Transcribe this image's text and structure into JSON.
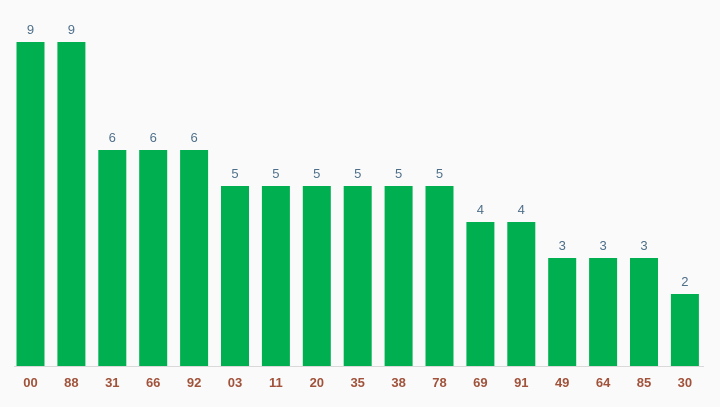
{
  "chart_data": {
    "type": "bar",
    "categories": [
      "00",
      "88",
      "31",
      "66",
      "92",
      "03",
      "11",
      "20",
      "35",
      "38",
      "78",
      "69",
      "91",
      "49",
      "64",
      "85",
      "30"
    ],
    "values": [
      9,
      9,
      6,
      6,
      6,
      5,
      5,
      5,
      5,
      5,
      5,
      4,
      4,
      3,
      3,
      3,
      2
    ],
    "ylim": [
      0,
      9
    ],
    "grid": false,
    "data_labels": true,
    "title": "",
    "xlabel": "",
    "ylabel": ""
  },
  "colors": {
    "bar": "#00b050",
    "value_label": "#4e6f8a",
    "category_label": "#a0523a",
    "axis_line": "#d9d9d9",
    "background": "#fafafa"
  }
}
